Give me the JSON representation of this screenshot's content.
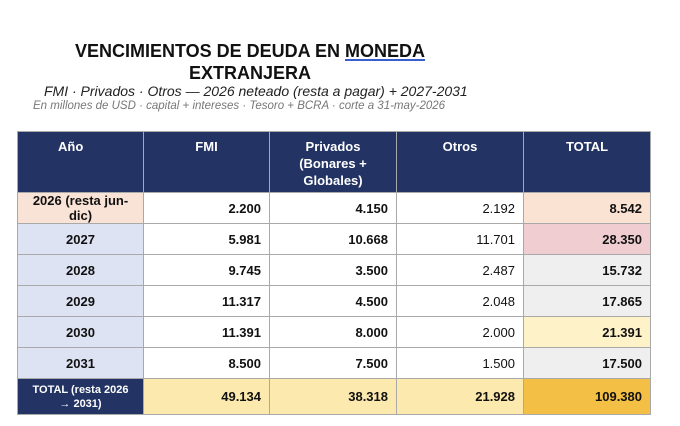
{
  "title": {
    "line1_prefix": "VENCIMIENTOS DE DEUDA EN ",
    "line1_underlined": "MONEDA",
    "line2": "EXTRANJERA"
  },
  "subtitle": "FMI · Privados · Otros — 2026 neteado (resta a pagar) + 2027-2031",
  "note": "En millones de USD · capital + intereses · Tesoro + BCRA · corte a 31-may-2026",
  "table": {
    "headers": [
      "Año",
      "FMI",
      "Privados (Bonares + Globales)",
      "Otros",
      "TOTAL"
    ],
    "rows": [
      {
        "year": "2026 (resta jun-dic)",
        "fmi": "2.200",
        "privados": "4.150",
        "otros": "2.192",
        "total": "8.542",
        "total_bg": "#fbe3d4"
      },
      {
        "year": "2027",
        "fmi": "5.981",
        "privados": "10.668",
        "otros": "11.701",
        "total": "28.350",
        "total_bg": "#efcdd0"
      },
      {
        "year": "2028",
        "fmi": "9.745",
        "privados": "3.500",
        "otros": "2.487",
        "total": "15.732",
        "total_bg": "#efefef"
      },
      {
        "year": "2029",
        "fmi": "11.317",
        "privados": "4.500",
        "otros": "2.048",
        "total": "17.865",
        "total_bg": "#efefef"
      },
      {
        "year": "2030",
        "fmi": "11.391",
        "privados": "8.000",
        "otros": "2.000",
        "total": "21.391",
        "total_bg": "#fdf2c8"
      },
      {
        "year": "2031",
        "fmi": "8.500",
        "privados": "7.500",
        "otros": "1.500",
        "total": "17.500",
        "total_bg": "#efefef"
      }
    ],
    "total_row": {
      "label": "TOTAL (resta 2026 → 2031)",
      "fmi": "49.134",
      "privados": "38.318",
      "otros": "21.928",
      "total": "109.380",
      "total_bg": "#f3bf45"
    }
  },
  "colors": {
    "header_bg": "#233464",
    "year_bg": "#dde3f2",
    "total_row_bg": "#fce9ae"
  }
}
